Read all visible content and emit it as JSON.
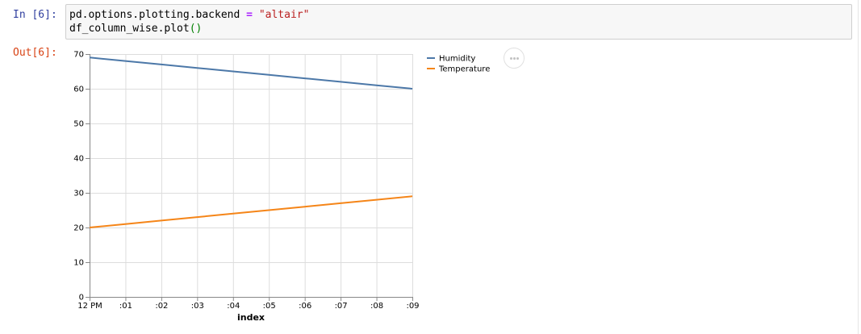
{
  "cell": {
    "in_prompt": "In [6]:",
    "out_prompt": "Out[6]:",
    "code": {
      "line1_prefix": "pd.options.plotting.backend ",
      "line1_op": "=",
      "line1_space": " ",
      "line1_string": "\"altair\"",
      "line2_prefix": "df_column_wise.plot",
      "line2_parens": "()"
    }
  },
  "colors": {
    "humidity": "#4c78a8",
    "temperature": "#f58518",
    "grid": "#dddddd",
    "axis": "#888888"
  },
  "icons": {
    "actions": "more-horizontal-icon"
  },
  "chart_data": {
    "type": "line",
    "xlabel": "index",
    "ylabel": "",
    "x": [
      "12 PM",
      ":01",
      ":02",
      ":03",
      ":04",
      ":05",
      ":06",
      ":07",
      ":08",
      ":09"
    ],
    "ylim": [
      0,
      70
    ],
    "yticks": [
      0,
      10,
      20,
      30,
      40,
      50,
      60,
      70
    ],
    "grid": true,
    "legend_position": "right",
    "series": [
      {
        "name": "Humidity",
        "values": [
          69,
          68,
          67,
          66,
          65,
          64,
          63,
          62,
          61,
          60
        ]
      },
      {
        "name": "Temperature",
        "values": [
          20,
          21,
          22,
          23,
          24,
          25,
          26,
          27,
          28,
          29
        ]
      }
    ]
  }
}
